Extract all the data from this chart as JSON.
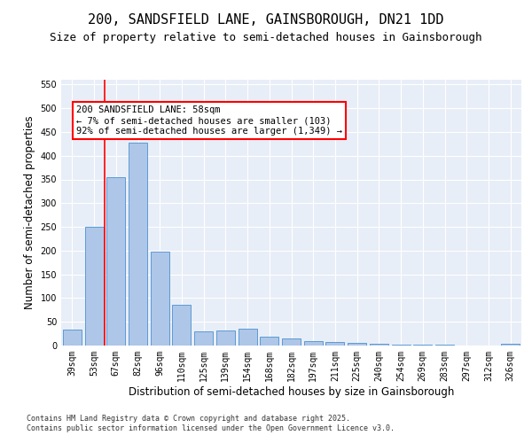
{
  "title": "200, SANDSFIELD LANE, GAINSBOROUGH, DN21 1DD",
  "subtitle": "Size of property relative to semi-detached houses in Gainsborough",
  "xlabel": "Distribution of semi-detached houses by size in Gainsborough",
  "ylabel": "Number of semi-detached properties",
  "categories": [
    "39sqm",
    "53sqm",
    "67sqm",
    "82sqm",
    "96sqm",
    "110sqm",
    "125sqm",
    "139sqm",
    "154sqm",
    "168sqm",
    "182sqm",
    "197sqm",
    "211sqm",
    "225sqm",
    "240sqm",
    "254sqm",
    "269sqm",
    "283sqm",
    "297sqm",
    "312sqm",
    "326sqm"
  ],
  "values": [
    33,
    250,
    355,
    428,
    197,
    85,
    30,
    32,
    35,
    19,
    15,
    10,
    7,
    5,
    3,
    2,
    1,
    1,
    0,
    0,
    3
  ],
  "bar_color": "#aec6e8",
  "bar_edge_color": "#5b9bd5",
  "vline_x": 1.5,
  "vline_color": "red",
  "annotation_text": "200 SANDSFIELD LANE: 58sqm\n← 7% of semi-detached houses are smaller (103)\n92% of semi-detached houses are larger (1,349) →",
  "ylim": [
    0,
    560
  ],
  "yticks": [
    0,
    50,
    100,
    150,
    200,
    250,
    300,
    350,
    400,
    450,
    500,
    550
  ],
  "footer": "Contains HM Land Registry data © Crown copyright and database right 2025.\nContains public sector information licensed under the Open Government Licence v3.0.",
  "background_color": "#e8eef7",
  "title_fontsize": 11,
  "subtitle_fontsize": 9,
  "axis_label_fontsize": 8.5,
  "tick_fontsize": 7,
  "footer_fontsize": 6,
  "annot_fontsize": 7.5
}
